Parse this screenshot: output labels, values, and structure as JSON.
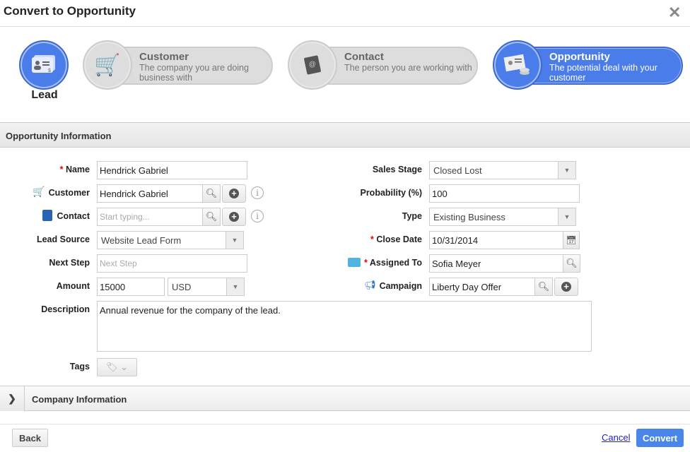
{
  "dialog": {
    "title": "Convert to Opportunity"
  },
  "steps": [
    {
      "label": "Lead",
      "active": true
    },
    {
      "title": "Customer",
      "desc": "The company you are doing business with"
    },
    {
      "title": "Contact",
      "desc": "The person you are working with"
    },
    {
      "title": "Opportunity",
      "desc": "The potential deal with your customer",
      "active": true
    }
  ],
  "colors": {
    "accent": "#4a7cea",
    "required": "#ee0000"
  },
  "opportunity": {
    "section_title": "Opportunity Information",
    "name": {
      "label": "Name",
      "value": "Hendrick Gabriel",
      "required": true
    },
    "customer": {
      "label": "Customer",
      "value": "Hendrick Gabriel"
    },
    "contact": {
      "label": "Contact",
      "placeholder": "Start typing..."
    },
    "lead_source": {
      "label": "Lead Source",
      "value": "Website Lead Form"
    },
    "next_step": {
      "label": "Next Step",
      "placeholder": "Next Step"
    },
    "amount": {
      "label": "Amount",
      "value": "15000",
      "currency": "USD"
    },
    "description": {
      "label": "Description",
      "value": "Annual revenue for the company of the lead."
    },
    "tags": {
      "label": "Tags"
    },
    "sales_stage": {
      "label": "Sales Stage",
      "value": "Closed Lost"
    },
    "probability": {
      "label": "Probability (%)",
      "value": "100"
    },
    "type": {
      "label": "Type",
      "value": "Existing Business"
    },
    "close_date": {
      "label": "Close Date",
      "value": "10/31/2014",
      "required": true
    },
    "assigned_to": {
      "label": "Assigned To",
      "value": "Sofia Meyer",
      "required": true
    },
    "campaign": {
      "label": "Campaign",
      "value": "Liberty Day Offer"
    }
  },
  "company": {
    "section_title": "Company Information"
  },
  "footer": {
    "back": "Back",
    "cancel": "Cancel",
    "convert": "Convert"
  },
  "required_mark": "*"
}
